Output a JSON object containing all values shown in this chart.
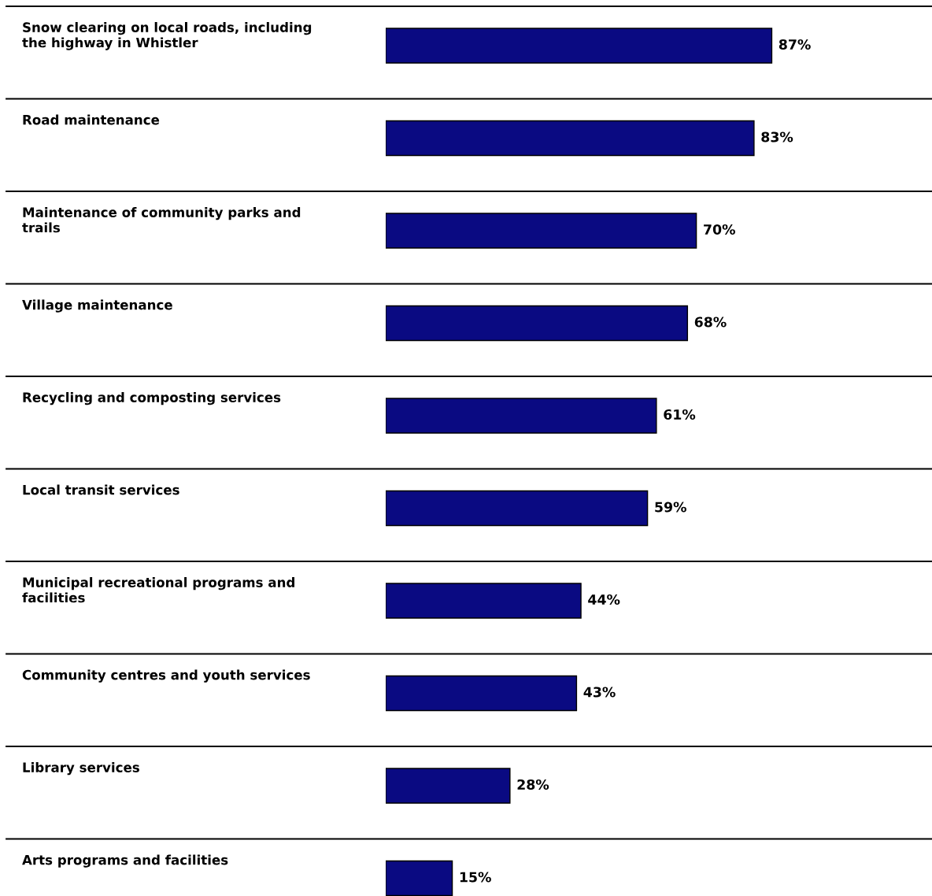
{
  "chart_data": {
    "type": "bar",
    "orientation": "horizontal",
    "categories": [
      "Snow clearing on local roads, including the highway in Whistler",
      "Road maintenance",
      "Maintenance of community parks and trails",
      "Village maintenance",
      "Recycling and composting services",
      "Local transit services",
      "Municipal recreational programs and facilities",
      "Community centres and youth services",
      "Library services",
      "Arts programs and facilities"
    ],
    "values": [
      87,
      83,
      70,
      68,
      61,
      59,
      44,
      43,
      28,
      15
    ],
    "value_labels": [
      "87%",
      "83%",
      "70%",
      "68%",
      "61%",
      "59%",
      "44%",
      "43%",
      "28%",
      "15%"
    ],
    "color": "#0a0a82",
    "grid": "y"
  }
}
